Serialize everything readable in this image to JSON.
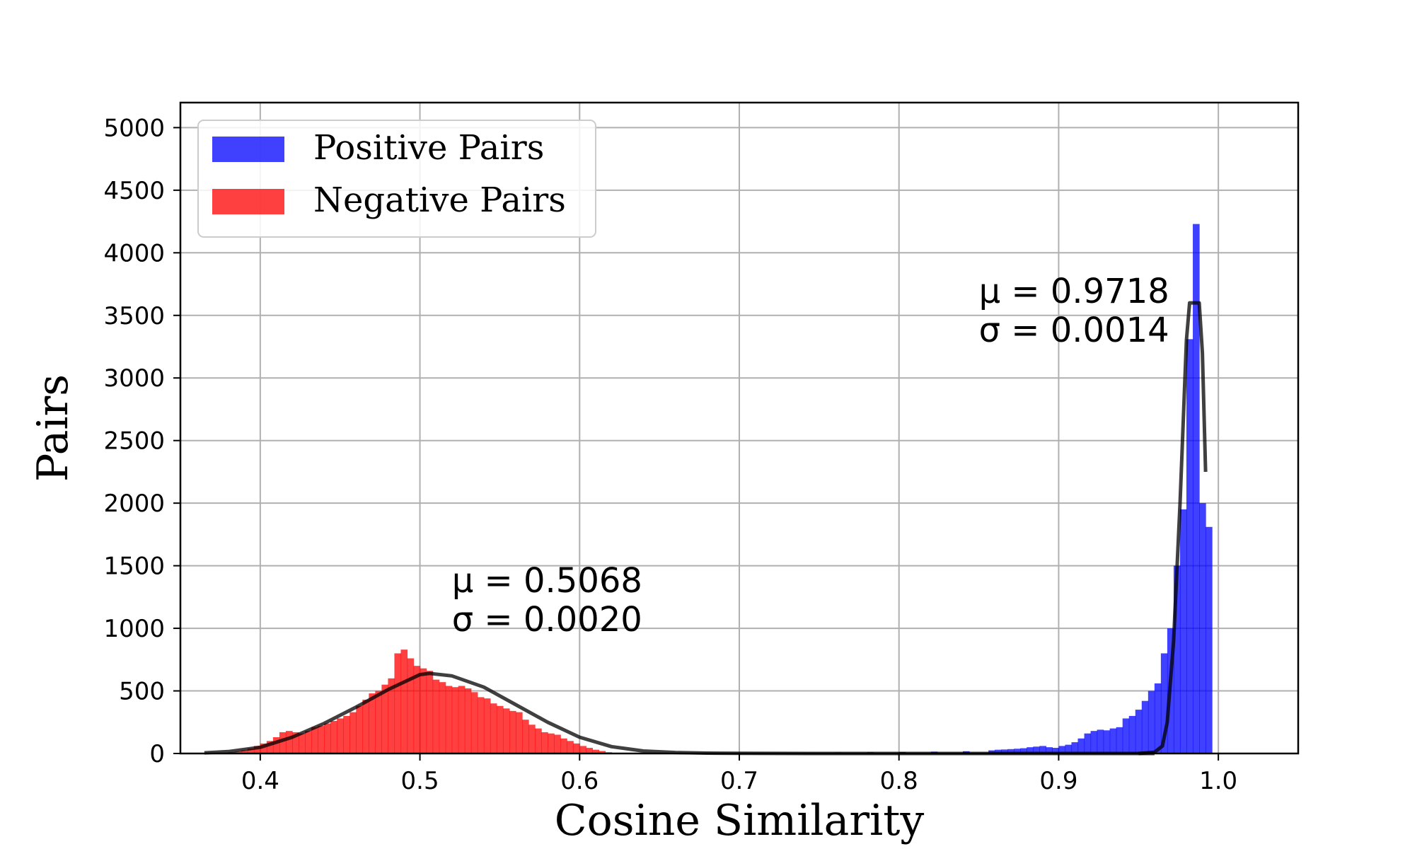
{
  "chart_data": {
    "type": "bar",
    "xlabel": "Cosine Similarity",
    "ylabel": "Pairs",
    "xlim": [
      0.35,
      1.05
    ],
    "ylim": [
      0,
      5200
    ],
    "xticks": [
      0.4,
      0.5,
      0.6,
      0.7,
      0.8,
      0.9,
      1.0
    ],
    "xtick_labels": [
      "0.4",
      "0.5",
      "0.6",
      "0.7",
      "0.8",
      "0.9",
      "1.0"
    ],
    "yticks": [
      0,
      500,
      1000,
      1500,
      2000,
      2500,
      3000,
      3500,
      4000,
      4500,
      5000
    ],
    "ytick_labels": [
      "0",
      "500",
      "1000",
      "1500",
      "2000",
      "2500",
      "3000",
      "3500",
      "4000",
      "4500",
      "5000"
    ],
    "grid": true,
    "legend_position": "top-left",
    "bin_width": 0.004,
    "series": [
      {
        "name": "Positive Pairs",
        "color": "#0000ff",
        "bins_start": [
          0.7,
          0.72,
          0.74,
          0.76,
          0.78,
          0.8,
          0.82,
          0.84,
          0.856,
          0.86,
          0.864,
          0.868,
          0.872,
          0.876,
          0.88,
          0.884,
          0.888,
          0.892,
          0.896,
          0.9,
          0.904,
          0.908,
          0.912,
          0.916,
          0.92,
          0.924,
          0.928,
          0.932,
          0.936,
          0.94,
          0.944,
          0.948,
          0.952,
          0.956,
          0.96,
          0.964,
          0.968,
          0.972,
          0.976,
          0.98,
          0.984,
          0.988,
          0.992,
          0.996
        ],
        "values": [
          3,
          5,
          6,
          8,
          10,
          12,
          15,
          18,
          25,
          30,
          32,
          35,
          38,
          42,
          50,
          55,
          60,
          50,
          45,
          60,
          70,
          90,
          120,
          160,
          180,
          190,
          185,
          200,
          210,
          280,
          300,
          350,
          420,
          500,
          560,
          800,
          1000,
          1500,
          1950,
          3310,
          4230,
          2000,
          1810,
          0
        ]
      },
      {
        "name": "Negative Pairs",
        "color": "#ff0000",
        "bins_start": [
          0.376,
          0.38,
          0.384,
          0.388,
          0.392,
          0.396,
          0.4,
          0.404,
          0.408,
          0.412,
          0.416,
          0.42,
          0.424,
          0.428,
          0.432,
          0.436,
          0.44,
          0.444,
          0.448,
          0.452,
          0.456,
          0.46,
          0.464,
          0.468,
          0.472,
          0.476,
          0.48,
          0.484,
          0.488,
          0.492,
          0.496,
          0.5,
          0.504,
          0.508,
          0.512,
          0.516,
          0.52,
          0.524,
          0.528,
          0.532,
          0.536,
          0.54,
          0.544,
          0.548,
          0.552,
          0.556,
          0.56,
          0.564,
          0.568,
          0.572,
          0.576,
          0.58,
          0.584,
          0.588,
          0.592,
          0.596,
          0.6,
          0.604,
          0.608,
          0.612,
          0.616,
          0.62
        ],
        "values": [
          5,
          10,
          15,
          25,
          40,
          60,
          80,
          100,
          130,
          170,
          180,
          170,
          160,
          180,
          210,
          220,
          240,
          260,
          280,
          300,
          330,
          380,
          430,
          480,
          500,
          550,
          600,
          800,
          830,
          760,
          700,
          680,
          660,
          590,
          570,
          540,
          530,
          540,
          520,
          490,
          450,
          440,
          400,
          380,
          360,
          340,
          330,
          270,
          230,
          200,
          170,
          160,
          150,
          120,
          100,
          80,
          60,
          45,
          30,
          20,
          10,
          5
        ]
      }
    ],
    "fits": [
      {
        "x": [
          0.365,
          0.38,
          0.4,
          0.42,
          0.44,
          0.46,
          0.48,
          0.5,
          0.506,
          0.52,
          0.54,
          0.56,
          0.58,
          0.6,
          0.62,
          0.64,
          0.66,
          0.68,
          0.7,
          0.75,
          0.8,
          0.85,
          0.9,
          0.95,
          0.96
        ],
        "y": [
          5,
          15,
          50,
          130,
          240,
          370,
          510,
          630,
          640,
          620,
          530,
          390,
          250,
          130,
          55,
          20,
          8,
          3,
          1,
          0,
          0,
          0,
          0,
          0,
          0
        ]
      },
      {
        "x": [
          0.95,
          0.96,
          0.965,
          0.968,
          0.972,
          0.976,
          0.98,
          0.982,
          0.984,
          0.988,
          0.99,
          0.992
        ],
        "y": [
          0,
          10,
          60,
          250,
          900,
          2000,
          3300,
          3600,
          3600,
          3600,
          3200,
          2250
        ]
      }
    ],
    "annotations": [
      {
        "line1": "μ = 0.5068",
        "line2": "σ = 0.0020",
        "x": 0.52,
        "y": 1290
      },
      {
        "line1": "μ = 0.9718",
        "line2": "σ = 0.0014",
        "x": 0.85,
        "y": 3600
      }
    ]
  }
}
